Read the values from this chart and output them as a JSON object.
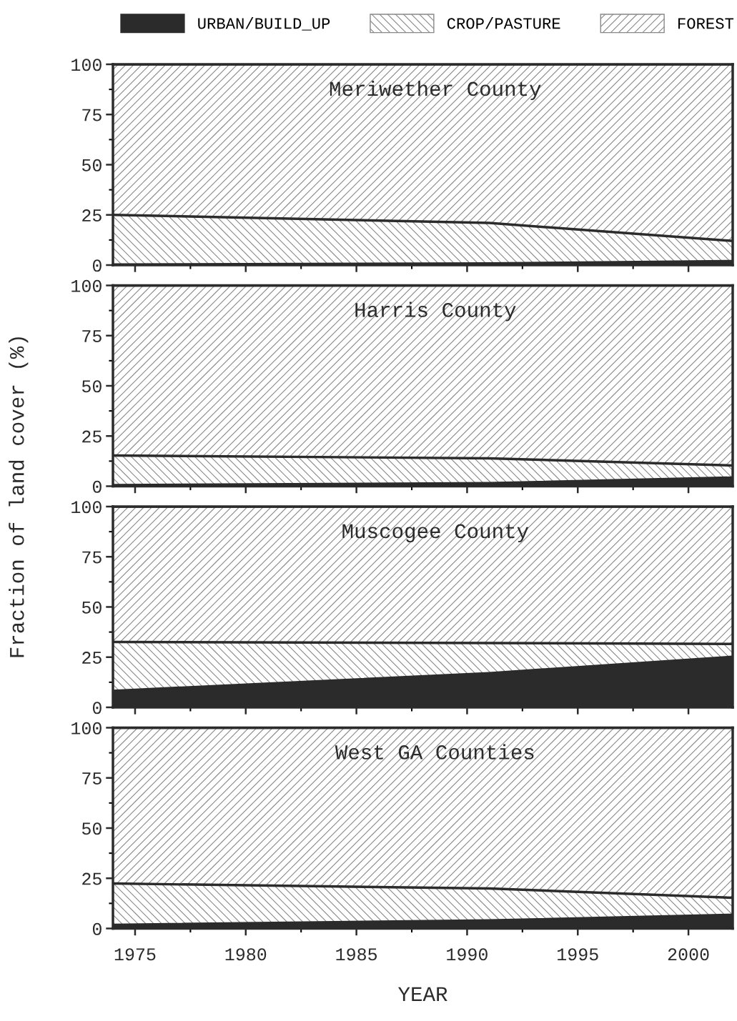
{
  "chart_data": [
    {
      "type": "area",
      "title": "Meriwether County",
      "stacked": true,
      "legend": "top",
      "ylabel": "Fraction of land cover (%)",
      "tick_labels": "y",
      "x": [
        1974,
        1991,
        2002
      ],
      "xlim": [
        1974,
        2002
      ],
      "xticks": [
        1975,
        1980,
        1985,
        1990,
        1995,
        2000
      ],
      "ylim": [
        0,
        100
      ],
      "yticks": [
        0,
        25,
        50,
        75,
        100
      ],
      "series": [
        {
          "name": "URBAN/BUILD_UP",
          "color": "#2b2b2b",
          "values": [
            0.3,
            0.8,
            2
          ]
        },
        {
          "name": "CROP/PASTURE",
          "color": "#ffffff",
          "values": [
            24.7,
            20.2,
            10
          ]
        },
        {
          "name": "FOREST",
          "color": "#ffffff",
          "values": [
            75,
            79,
            88
          ]
        }
      ]
    },
    {
      "type": "area",
      "title": "Harris County",
      "stacked": true,
      "tick_labels": "y",
      "x": [
        1974,
        1991,
        2002
      ],
      "xlim": [
        1974,
        2002
      ],
      "xticks": [
        1975,
        1980,
        1985,
        1990,
        1995,
        2000
      ],
      "ylim": [
        0,
        100
      ],
      "yticks": [
        0,
        25,
        50,
        75,
        100
      ],
      "series": [
        {
          "color": "#2b2b2b",
          "values": [
            0.5,
            1.5,
            4.3
          ]
        },
        {
          "color": "#ffffff",
          "values": [
            14.8,
            12.4,
            6
          ]
        },
        {
          "color": "#ffffff",
          "values": [
            84.7,
            86.1,
            89.7
          ]
        }
      ]
    },
    {
      "type": "area",
      "title": "Muscogee County",
      "stacked": true,
      "tick_labels": "y",
      "x": [
        1974,
        1991,
        2002
      ],
      "xlim": [
        1974,
        2002
      ],
      "xticks": [
        1975,
        1980,
        1985,
        1990,
        1995,
        2000
      ],
      "ylim": [
        0,
        100
      ],
      "yticks": [
        0,
        25,
        50,
        75,
        100
      ],
      "series": [
        {
          "color": "#2b2b2b",
          "values": [
            8.2,
            17,
            25.2
          ]
        },
        {
          "color": "#ffffff",
          "values": [
            24.4,
            15,
            6.4
          ]
        },
        {
          "color": "#ffffff",
          "values": [
            67.4,
            68,
            68.4
          ]
        }
      ]
    },
    {
      "type": "area",
      "title": "West GA Counties",
      "stacked": true,
      "xlabel": "YEAR",
      "x": [
        1974,
        1991,
        2002
      ],
      "xlim": [
        1974,
        2002
      ],
      "xticks": [
        1975,
        1980,
        1985,
        1990,
        1995,
        2000
      ],
      "ylim": [
        0,
        100
      ],
      "yticks": [
        0,
        25,
        50,
        75,
        100
      ],
      "series": [
        {
          "color": "#2b2b2b",
          "values": [
            1.8,
            4,
            6.8
          ]
        },
        {
          "color": "#ffffff",
          "values": [
            20.6,
            15.9,
            8.5
          ]
        },
        {
          "color": "#ffffff",
          "values": [
            77.6,
            80.1,
            84.7
          ]
        }
      ]
    }
  ]
}
